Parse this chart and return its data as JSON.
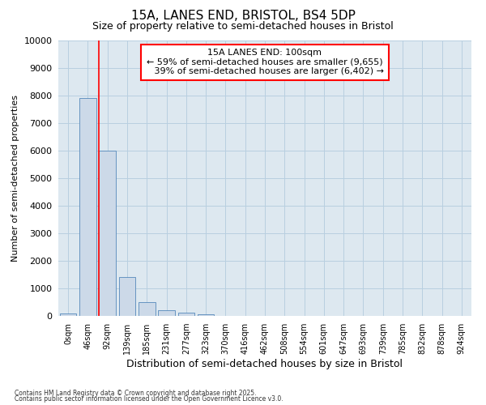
{
  "title1": "15A, LANES END, BRISTOL, BS4 5DP",
  "title2": "Size of property relative to semi-detached houses in Bristol",
  "xlabel": "Distribution of semi-detached houses by size in Bristol",
  "ylabel": "Number of semi-detached properties",
  "bar_labels": [
    "0sqm",
    "46sqm",
    "92sqm",
    "139sqm",
    "185sqm",
    "231sqm",
    "277sqm",
    "323sqm",
    "370sqm",
    "416sqm",
    "462sqm",
    "508sqm",
    "554sqm",
    "601sqm",
    "647sqm",
    "693sqm",
    "739sqm",
    "785sqm",
    "832sqm",
    "878sqm",
    "924sqm"
  ],
  "bar_values": [
    100,
    7900,
    6000,
    1400,
    500,
    220,
    130,
    70,
    0,
    0,
    0,
    0,
    0,
    0,
    0,
    0,
    0,
    0,
    0,
    0,
    0
  ],
  "bar_color": "#ccd9e8",
  "bar_edge_color": "#5588bb",
  "vline_x_pos": 1.57,
  "vline_color": "red",
  "annotation_text": "15A LANES END: 100sqm\n← 59% of semi-detached houses are smaller (9,655)\n   39% of semi-detached houses are larger (6,402) →",
  "annotation_box_color": "white",
  "annotation_box_edge": "red",
  "ylim": [
    0,
    10000
  ],
  "yticks": [
    0,
    1000,
    2000,
    3000,
    4000,
    5000,
    6000,
    7000,
    8000,
    9000,
    10000
  ],
  "grid_color": "#b8cfe0",
  "bg_color": "#dde8f0",
  "footer1": "Contains HM Land Registry data © Crown copyright and database right 2025.",
  "footer2": "Contains public sector information licensed under the Open Government Licence v3.0.",
  "title1_fontsize": 11,
  "title2_fontsize": 9
}
